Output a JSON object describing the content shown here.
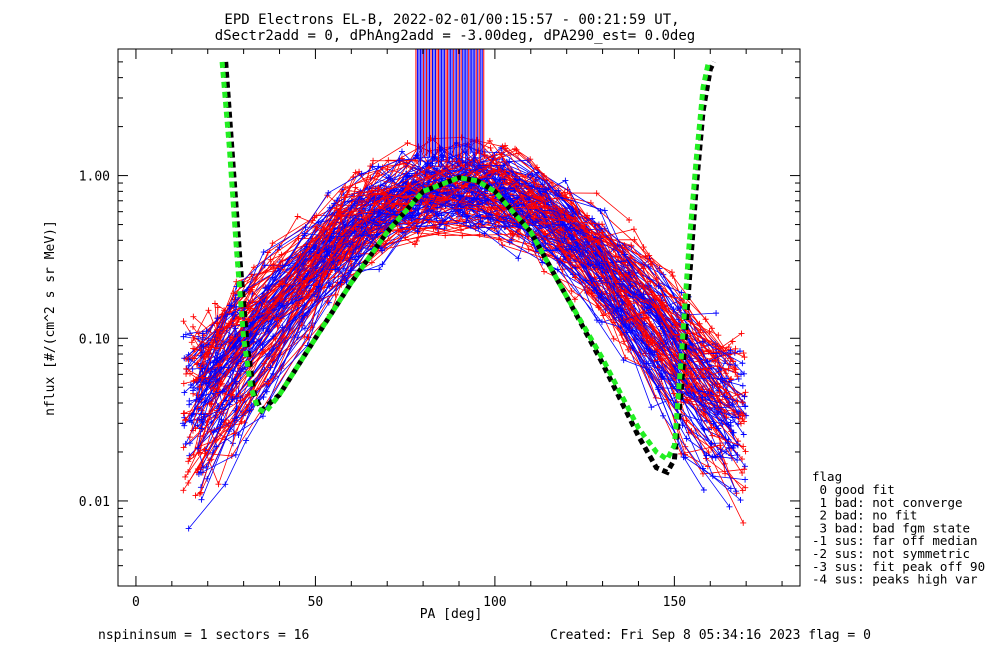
{
  "chart_data": {
    "type": "line",
    "title_lines": [
      "EPD Electrons EL-B, 2022-02-01/00:15:57 - 00:21:59 UT,",
      "dSectr2add = 0, dPhAng2add = -3.00deg, dPA290_est=   0.0deg"
    ],
    "xlabel": "PA [deg]",
    "ylabel": "nflux [#/(cm^2 s sr MeV)]",
    "x_ticks": [
      "0",
      "50",
      "100",
      "150"
    ],
    "y_ticks": [
      "0.01",
      "0.10",
      "1.00"
    ],
    "xlim": [
      -5,
      185
    ],
    "ylim": [
      0.003,
      6
    ],
    "y_scale": "log",
    "grid": false,
    "legend": {
      "placement": "right",
      "title": "flag",
      "entries": [
        " 0 good fit",
        " 1 bad: not converge",
        " 2 bad: no fit",
        " 3 bad: bad fgm state",
        "-1 sus: far off median",
        "-2 sus: not symmetric",
        "-3 sus: fit peak off 90",
        "-4 sus: peaks high var"
      ]
    },
    "colors": {
      "trace_a": "#ff0000",
      "trace_b": "#0000ff",
      "fit_black": "#000000",
      "fit_green": "#22ee22"
    },
    "series": [
      {
        "style": "dashed-black",
        "x": [
          25,
          27,
          29,
          31,
          33,
          35,
          40,
          50,
          60,
          70,
          80,
          90,
          95,
          100,
          110,
          120,
          130,
          140,
          145,
          148,
          150,
          152,
          154,
          156,
          158,
          160,
          161
        ],
        "y": [
          5.0,
          1.2,
          0.3,
          0.09,
          0.045,
          0.036,
          0.045,
          0.1,
          0.22,
          0.45,
          0.8,
          0.97,
          0.93,
          0.8,
          0.45,
          0.18,
          0.07,
          0.025,
          0.016,
          0.015,
          0.018,
          0.05,
          0.2,
          0.8,
          2.5,
          4.5,
          5.0
        ]
      },
      {
        "style": "dashed-green",
        "x": [
          24,
          26,
          28,
          30,
          32,
          34,
          36,
          40,
          50,
          60,
          70,
          80,
          90,
          95,
          100,
          110,
          120,
          130,
          140,
          145,
          148,
          150,
          152,
          154,
          156,
          158,
          159.5
        ],
        "y": [
          5.0,
          1.5,
          0.35,
          0.1,
          0.05,
          0.037,
          0.035,
          0.045,
          0.1,
          0.22,
          0.45,
          0.8,
          0.97,
          0.93,
          0.8,
          0.45,
          0.18,
          0.075,
          0.028,
          0.02,
          0.018,
          0.022,
          0.08,
          0.35,
          1.2,
          3.5,
          5.0
        ]
      }
    ]
  },
  "footer": {
    "left": "nspininsum =  1  sectors = 16",
    "right": "Created: Fri Sep  8 05:34:16 2023   flag = 0"
  }
}
